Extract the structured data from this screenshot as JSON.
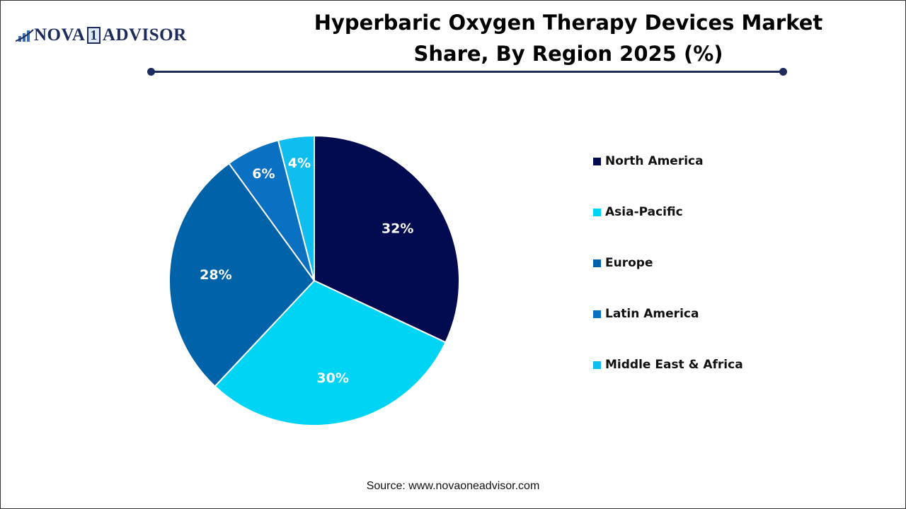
{
  "logo": {
    "text_left": "NOVA",
    "text_one": "1",
    "text_right": "ADVISOR"
  },
  "title_line1": "Hyperbaric Oxygen Therapy Devices Market",
  "title_line2": "Share, By Region 2025 (%)",
  "source": "Source: www.novaoneadvisor.com",
  "chart_data": {
    "type": "pie",
    "title": "Hyperbaric Oxygen Therapy Devices Market Share, By Region 2025 (%)",
    "start_angle": "top, clockwise",
    "legend_position": "right",
    "slices": [
      {
        "label": "North America",
        "value": 32,
        "display": "32%",
        "color": "#020A50"
      },
      {
        "label": "Asia-Pacific",
        "value": 30,
        "display": "30%",
        "color": "#00D4F5"
      },
      {
        "label": "Europe",
        "value": 28,
        "display": "28%",
        "color": "#0062A8"
      },
      {
        "label": "Latin America",
        "value": 6,
        "display": "6%",
        "color": "#0A70C2"
      },
      {
        "label": "Middle East & Africa",
        "value": 4,
        "display": "4%",
        "color": "#10BDEF"
      }
    ]
  }
}
